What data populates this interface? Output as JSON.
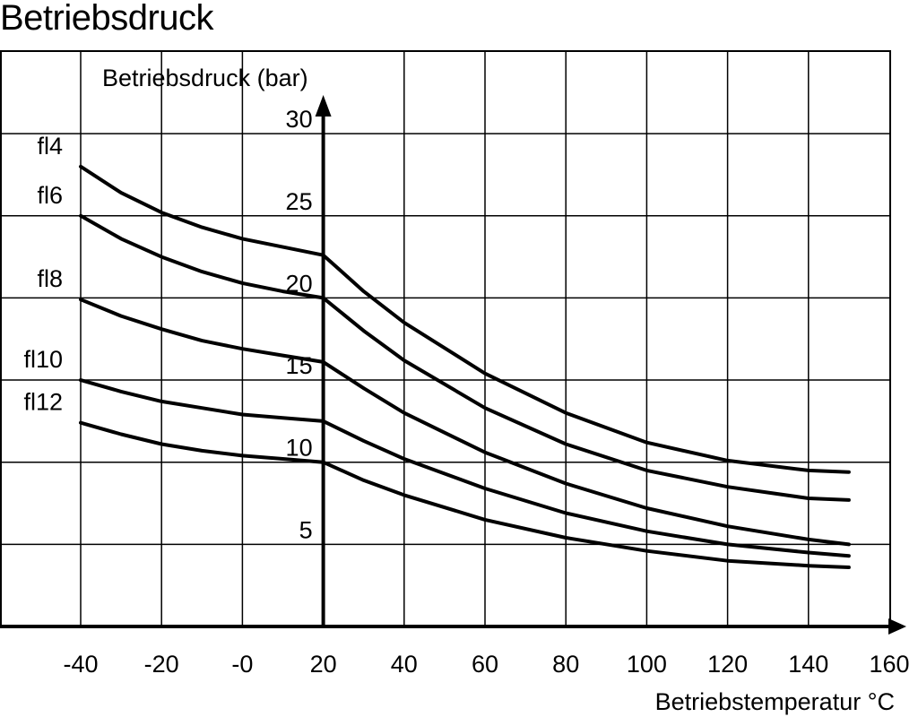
{
  "chart_data": {
    "type": "line",
    "title": "Betriebsdruck",
    "xlabel": "Betriebstemperatur °C",
    "ylabel": "Betriebsdruck (bar)",
    "xlim": [
      -40,
      160
    ],
    "ylim": [
      0,
      30
    ],
    "x_ticks": [
      {
        "v": -40,
        "label": "-40"
      },
      {
        "v": -20,
        "label": "-20"
      },
      {
        "v": 0,
        "label": "-0"
      },
      {
        "v": 20,
        "label": "20"
      },
      {
        "v": 40,
        "label": "40"
      },
      {
        "v": 60,
        "label": "60"
      },
      {
        "v": 80,
        "label": "80"
      },
      {
        "v": 100,
        "label": "100"
      },
      {
        "v": 120,
        "label": "120"
      },
      {
        "v": 140,
        "label": "140"
      },
      {
        "v": 160,
        "label": "160"
      }
    ],
    "y_ticks": [
      {
        "v": 5,
        "label": "5"
      },
      {
        "v": 10,
        "label": "10"
      },
      {
        "v": 15,
        "label": "15"
      },
      {
        "v": 20,
        "label": "20"
      },
      {
        "v": 25,
        "label": "25"
      },
      {
        "v": 30,
        "label": "30"
      }
    ],
    "grid": true,
    "series": [
      {
        "name": "fl4",
        "x": [
          -40,
          -30,
          -20,
          -10,
          0,
          10,
          20,
          20,
          30,
          40,
          60,
          80,
          100,
          120,
          140,
          150
        ],
        "y": [
          28.0,
          26.4,
          25.2,
          24.3,
          23.6,
          23.1,
          22.6,
          22.6,
          20.4,
          18.5,
          15.4,
          13.0,
          11.2,
          10.1,
          9.5,
          9.4
        ]
      },
      {
        "name": "fl6",
        "x": [
          -40,
          -30,
          -20,
          -10,
          0,
          10,
          20,
          20,
          30,
          40,
          60,
          80,
          100,
          120,
          140,
          150
        ],
        "y": [
          25.0,
          23.6,
          22.5,
          21.6,
          20.9,
          20.4,
          20.0,
          20.0,
          18.0,
          16.2,
          13.3,
          11.1,
          9.5,
          8.5,
          7.8,
          7.7
        ]
      },
      {
        "name": "fl8",
        "x": [
          -40,
          -30,
          -20,
          -10,
          0,
          10,
          20,
          20,
          30,
          40,
          60,
          80,
          100,
          120,
          140,
          150
        ],
        "y": [
          19.9,
          18.9,
          18.1,
          17.4,
          16.9,
          16.5,
          16.1,
          16.1,
          14.5,
          13.0,
          10.6,
          8.7,
          7.2,
          6.1,
          5.3,
          5.0
        ]
      },
      {
        "name": "fl10",
        "x": [
          -40,
          -30,
          -20,
          -10,
          0,
          10,
          20,
          20,
          30,
          40,
          60,
          80,
          100,
          120,
          140,
          150
        ],
        "y": [
          15.0,
          14.3,
          13.7,
          13.3,
          12.9,
          12.7,
          12.5,
          12.5,
          11.3,
          10.2,
          8.4,
          6.9,
          5.8,
          5.0,
          4.5,
          4.3
        ]
      },
      {
        "name": "fl12",
        "x": [
          -40,
          -30,
          -20,
          -10,
          0,
          10,
          20,
          20,
          30,
          40,
          60,
          80,
          100,
          120,
          140,
          150
        ],
        "y": [
          12.4,
          11.7,
          11.1,
          10.7,
          10.4,
          10.2,
          10.0,
          10.0,
          8.9,
          8.0,
          6.5,
          5.4,
          4.6,
          4.0,
          3.7,
          3.6
        ]
      }
    ]
  }
}
